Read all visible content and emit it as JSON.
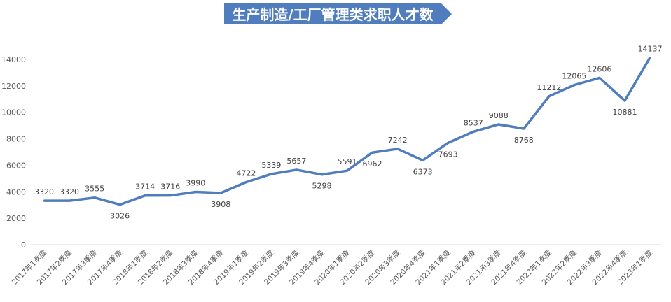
{
  "chart_data": {
    "type": "line",
    "title": "生产制造/工厂管理类求职人才数",
    "xlabel": "",
    "ylabel": "",
    "ylim": [
      0,
      14000
    ],
    "yticks": [
      0,
      2000,
      4000,
      6000,
      8000,
      10000,
      12000,
      14000
    ],
    "grid": false,
    "legend": "none",
    "categories": [
      "2017年1季度",
      "2017年2季度",
      "2017年3季度",
      "2017年4季度",
      "2018年1季度",
      "2018年2季度",
      "2018年3季度",
      "2018年4季度",
      "2019年1季度",
      "2019年2季度",
      "2019年3季度",
      "2019年4季度",
      "2020年1季度",
      "2020年2季度",
      "2020年3季度",
      "2020年4季度",
      "2021年1季度",
      "2021年2季度",
      "2021年3季度",
      "2021年4季度",
      "2022年1季度",
      "2022年2季度",
      "2022年3季度",
      "2022年4季度",
      "2023年1季度"
    ],
    "values": [
      3320,
      3320,
      3555,
      3026,
      3714,
      3716,
      3990,
      3908,
      4722,
      5339,
      5657,
      5298,
      5591,
      6962,
      7242,
      6373,
      7693,
      8537,
      9088,
      8768,
      11212,
      12065,
      12606,
      10881,
      14137
    ],
    "label_below": [
      false,
      false,
      false,
      true,
      false,
      false,
      false,
      true,
      false,
      false,
      false,
      true,
      false,
      true,
      false,
      true,
      true,
      false,
      false,
      true,
      false,
      false,
      false,
      true,
      false
    ],
    "colors": {
      "line": "#4f7dbd",
      "title_bg": "#4f7dbd",
      "title_text": "#ffffff",
      "axis": "#d9d9d9",
      "tick_text": "#595959",
      "label_text": "#404040"
    }
  }
}
